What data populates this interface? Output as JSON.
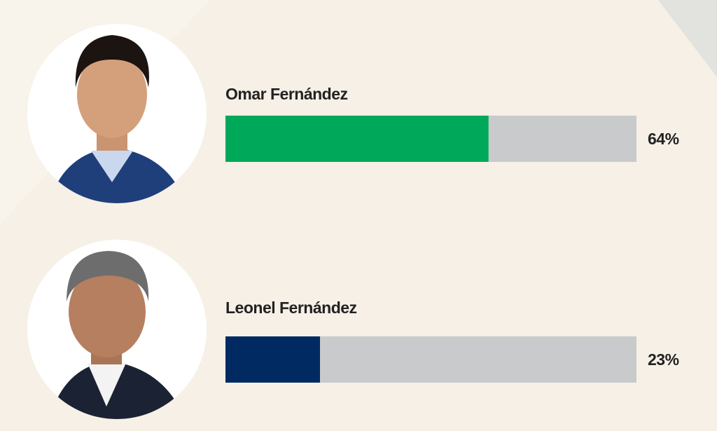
{
  "chart_data": {
    "type": "bar",
    "orientation": "horizontal",
    "categories": [
      "Omar Fernández",
      "Leonel Fernández"
    ],
    "values": [
      64,
      23
    ],
    "value_labels": [
      "64%",
      "23%"
    ],
    "colors": [
      "#00a85a",
      "#012a63"
    ],
    "track_color": "#c9cacc",
    "xlim": [
      0,
      100
    ]
  }
}
